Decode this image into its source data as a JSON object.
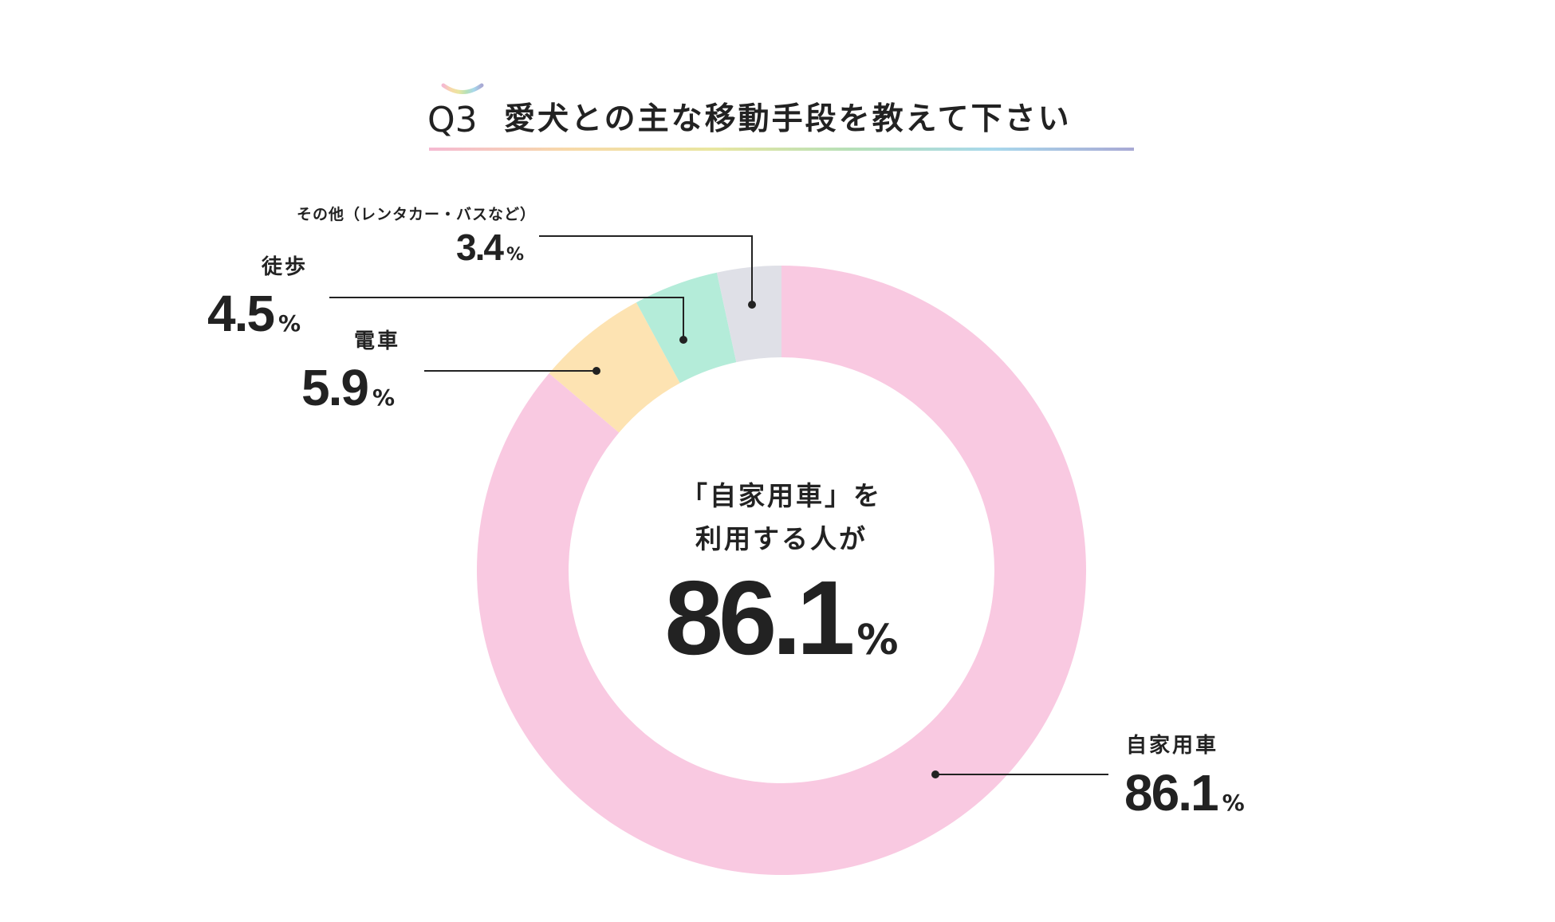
{
  "title": {
    "prefix": "Q3",
    "text": "愛犬との主な移動手段を教えて下さい"
  },
  "colors": {
    "background": "#ffffff",
    "text": "#222222",
    "rainbow": [
      "#f5b9d2",
      "#f7d9a8",
      "#e9e6a0",
      "#b6e0b8",
      "#a8d8ec",
      "#a8a9d4"
    ]
  },
  "center": {
    "line1": "「自家用車」を",
    "line2": "利用する人が",
    "value": "86.1",
    "unit": "%"
  },
  "chart_data": {
    "type": "pie",
    "donut": true,
    "unit": "%",
    "categories": [
      "自家用車",
      "電車",
      "徒歩",
      "その他（レンタカー・バスなど）"
    ],
    "values": [
      86.1,
      5.9,
      4.5,
      3.4
    ],
    "colors": [
      "#f9c9e1",
      "#fde3b2",
      "#b4ecd9",
      "#dfe0e7"
    ],
    "labels": [
      {
        "name": "自家用車",
        "value": "86.1",
        "unit": "%"
      },
      {
        "name": "電車",
        "value": "5.9",
        "unit": "%"
      },
      {
        "name": "徒歩",
        "value": "4.5",
        "unit": "%"
      },
      {
        "name": "その他（レンタカー・バスなど）",
        "value": "3.4",
        "unit": "%"
      }
    ]
  }
}
